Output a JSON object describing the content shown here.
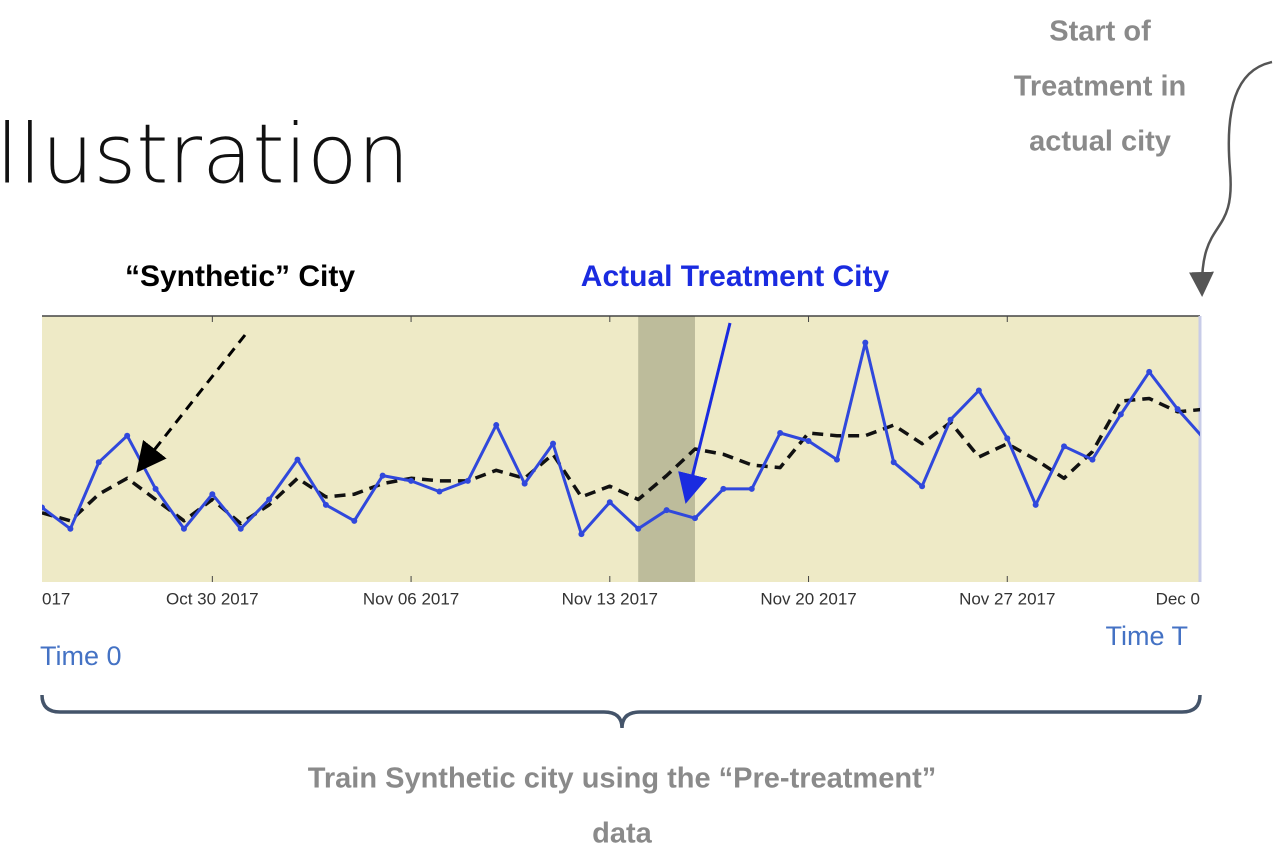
{
  "chart_data": {
    "type": "line",
    "title": "llustration",
    "annotations": {
      "treatment_start": [
        "Start of",
        "Treatment in",
        "actual city"
      ],
      "synthetic_label": "“Synthetic” City",
      "actual_label": "Actual Treatment City",
      "time_start": "Time 0",
      "time_end": "Time T",
      "training_note": [
        "Train Synthetic city using the “Pre-treatment”",
        "data"
      ]
    },
    "x": [
      "2017-10-24",
      "2017-10-25",
      "2017-10-26",
      "2017-10-27",
      "2017-10-28",
      "2017-10-29",
      "2017-10-30",
      "2017-10-31",
      "2017-11-01",
      "2017-11-02",
      "2017-11-03",
      "2017-11-04",
      "2017-11-05",
      "2017-11-06",
      "2017-11-07",
      "2017-11-08",
      "2017-11-09",
      "2017-11-10",
      "2017-11-11",
      "2017-11-12",
      "2017-11-13",
      "2017-11-14",
      "2017-11-15",
      "2017-11-16",
      "2017-11-17",
      "2017-11-18",
      "2017-11-19",
      "2017-11-20",
      "2017-11-21",
      "2017-11-22",
      "2017-11-23",
      "2017-11-24",
      "2017-11-25",
      "2017-11-26",
      "2017-11-27",
      "2017-11-28",
      "2017-11-29",
      "2017-11-30",
      "2017-12-01",
      "2017-12-02",
      "2017-12-03",
      "2017-12-04"
    ],
    "series": [
      {
        "color": "#3048dc",
        "style": "solid",
        "markers": true,
        "values": [
          28,
          20,
          45,
          55,
          35,
          20,
          33,
          20,
          31,
          46,
          29,
          23,
          40,
          38,
          34,
          38,
          59,
          37,
          52,
          18,
          30,
          20,
          27,
          24,
          35,
          35,
          56,
          53,
          46,
          90,
          45,
          36,
          61,
          72,
          54,
          29,
          51,
          46,
          63,
          79,
          65,
          53
        ]
      },
      {
        "color": "#111111",
        "style": "dashed",
        "markers": false,
        "values": [
          26,
          23,
          33,
          39,
          31,
          23,
          31,
          22,
          29,
          39,
          32,
          33,
          37,
          39,
          38,
          38,
          42,
          39,
          48,
          32,
          36,
          31,
          40,
          50,
          48,
          44,
          43,
          56,
          55,
          55,
          59,
          52,
          60,
          47,
          52,
          46,
          39,
          49,
          68,
          69,
          64,
          65
        ]
      }
    ],
    "highlight": [
      "2017-11-14",
      "2017-11-16"
    ],
    "xlim": [
      "2017-10-24",
      "2017-12-04"
    ],
    "ylim": [
      0,
      100
    ],
    "xticks": [
      {
        "value": "2017-10-23",
        "label": "017"
      },
      {
        "value": "2017-10-30",
        "label": "Oct 30 2017"
      },
      {
        "value": "2017-11-06",
        "label": "Nov 06 2017"
      },
      {
        "value": "2017-11-13",
        "label": "Nov 13 2017"
      },
      {
        "value": "2017-11-20",
        "label": "Nov 20 2017"
      },
      {
        "value": "2017-11-27",
        "label": "Nov 27 2017"
      },
      {
        "value": "2017-12-04",
        "label": "Dec 0"
      }
    ],
    "background": "#eeeac6",
    "highlight_color": "#bdbc9b"
  }
}
